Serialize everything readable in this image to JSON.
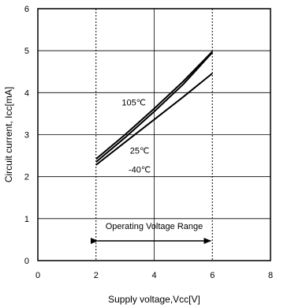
{
  "chart_data": {
    "type": "line",
    "xlabel": "Supply voltage,Vcc[V]",
    "ylabel": "Circuit current, Icc[mA]",
    "xlim": [
      0,
      8
    ],
    "ylim": [
      0,
      6
    ],
    "xticks": [
      0,
      2,
      4,
      6,
      8
    ],
    "yticks": [
      0,
      1,
      2,
      3,
      4,
      5,
      6
    ],
    "grid": true,
    "dashed_verticals": [
      2,
      6
    ],
    "series": [
      {
        "name": "105℃",
        "x": [
          2.0,
          3.0,
          4.0,
          5.0,
          6.0
        ],
        "y": [
          2.42,
          3.0,
          3.62,
          4.27,
          4.98
        ]
      },
      {
        "name": "25℃",
        "x": [
          2.0,
          3.0,
          4.0,
          5.0,
          6.0
        ],
        "y": [
          2.35,
          2.93,
          3.55,
          4.2,
          4.96
        ]
      },
      {
        "name": "-40℃",
        "x": [
          2.0,
          3.0,
          4.0,
          5.0,
          5.5,
          6.0
        ],
        "y": [
          2.28,
          2.82,
          3.36,
          3.9,
          4.18,
          4.46
        ]
      }
    ],
    "annotations": [
      {
        "text": "105℃",
        "x": 3.3,
        "y": 3.7
      },
      {
        "text": "25℃",
        "x": 3.5,
        "y": 2.55
      },
      {
        "text": "-40℃",
        "x": 3.5,
        "y": 2.1
      }
    ],
    "range_arrow": {
      "label": "Operating Voltage Range",
      "x_start": 2,
      "x_end": 6,
      "y": 0.47
    }
  }
}
